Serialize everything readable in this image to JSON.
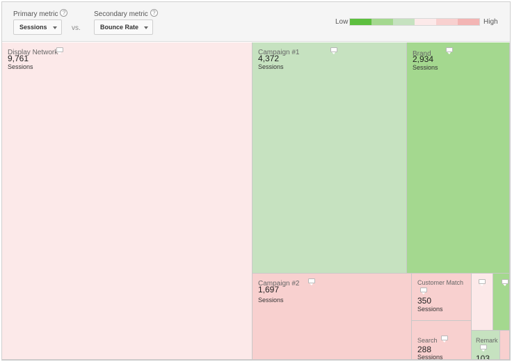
{
  "controls": {
    "primary_label": "Primary metric",
    "primary_value": "Sessions",
    "vs": "vs.",
    "secondary_label": "Secondary metric",
    "secondary_value": "Bounce Rate",
    "help_glyph": "?"
  },
  "legend": {
    "low": "Low",
    "high": "High",
    "colors": [
      "#5dbf3f",
      "#a4d88f",
      "#c6e2c0",
      "#fce9e9",
      "#f8d0cf",
      "#f3b5b4"
    ]
  },
  "chart_data": {
    "type": "treemap",
    "size_metric": "Sessions",
    "color_metric": "Bounce Rate",
    "items": [
      {
        "name": "Display Network",
        "value": 9761,
        "value_label": "9,761",
        "metric_label": "Sessions",
        "color": "#fce9e9"
      },
      {
        "name": "Campaign #1",
        "value": 4372,
        "value_label": "4,372",
        "metric_label": "Sessions",
        "color": "#c6e2c0"
      },
      {
        "name": "Brand",
        "value": 2934,
        "value_label": "2,934",
        "metric_label": "Sessions",
        "color": "#a4d88f"
      },
      {
        "name": "Campaign #2",
        "value": 1697,
        "value_label": "1,697",
        "metric_label": "Sessions",
        "color": "#f8d0cf"
      },
      {
        "name": "Customer Match",
        "value": 350,
        "value_label": "350",
        "metric_label": "Sessions",
        "color": "#f8d0cf"
      },
      {
        "name": "Search",
        "value": 288,
        "value_label": "288",
        "metric_label": "Sessions",
        "color": "#f8d0cf"
      },
      {
        "name": "Remark",
        "value": 103,
        "value_label": "103",
        "metric_label": "",
        "color": "#c6e2c0"
      },
      {
        "name": "",
        "value": null,
        "value_label": "",
        "metric_label": "",
        "color": "#fce9e9"
      },
      {
        "name": "",
        "value": null,
        "value_label": "",
        "metric_label": "",
        "color": "#a4d88f"
      },
      {
        "name": "",
        "value": null,
        "value_label": "",
        "metric_label": "",
        "color": "#f8d0cf"
      }
    ]
  }
}
